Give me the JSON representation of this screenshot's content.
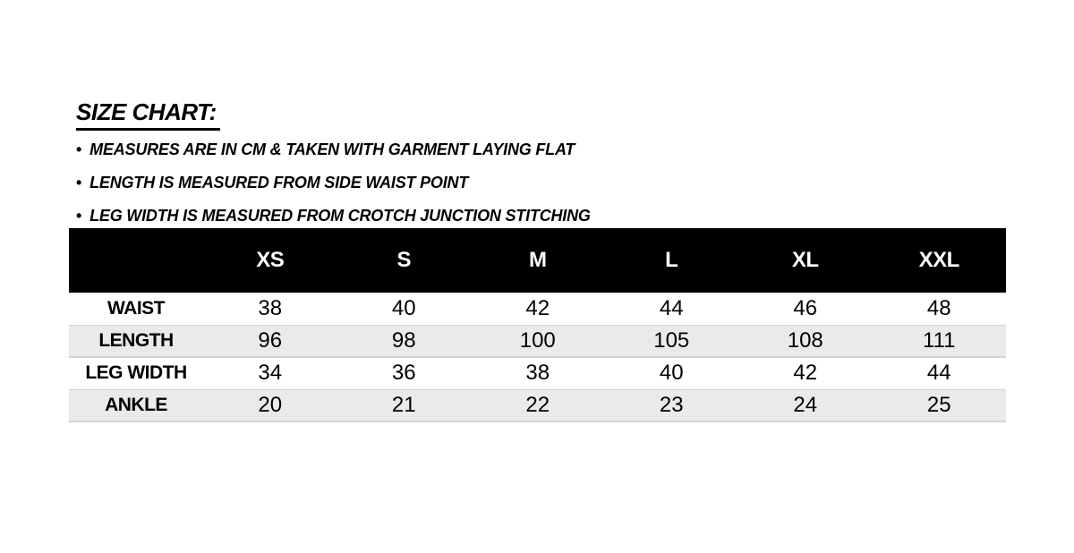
{
  "title": "SIZE CHART:",
  "icons": {
    "bullet": "•"
  },
  "notes": [
    "MEASURES ARE IN CM & TAKEN WITH GARMENT LAYING FLAT",
    "LENGTH IS MEASURED FROM SIDE WAIST POINT",
    "LEG WIDTH IS MEASURED FROM CROTCH JUNCTION STITCHING"
  ],
  "size_chart": {
    "columns": [
      "XS",
      "S",
      "M",
      "L",
      "XL",
      "XXL"
    ],
    "rows": [
      {
        "label": "WAIST",
        "values": [
          "38",
          "40",
          "42",
          "44",
          "46",
          "48"
        ]
      },
      {
        "label": "LENGTH",
        "values": [
          "96",
          "98",
          "100",
          "105",
          "108",
          "111"
        ]
      },
      {
        "label": "LEG WIDTH",
        "values": [
          "34",
          "36",
          "38",
          "40",
          "42",
          "44"
        ]
      },
      {
        "label": "ANKLE",
        "values": [
          "20",
          "21",
          "22",
          "23",
          "24",
          "25"
        ]
      }
    ]
  },
  "colors": {
    "page_bg": "#ffffff",
    "text": "#000000",
    "header_bg": "#000000",
    "header_text": "#ffffff",
    "row_alt_bg": "#eaeaea",
    "row_border": "#d4d4d4"
  }
}
